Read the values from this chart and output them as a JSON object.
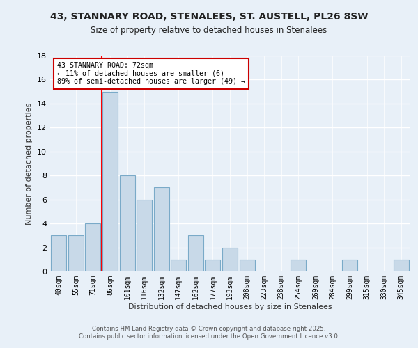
{
  "title1": "43, STANNARY ROAD, STENALEES, ST. AUSTELL, PL26 8SW",
  "title2": "Size of property relative to detached houses in Stenalees",
  "xlabel": "Distribution of detached houses by size in Stenalees",
  "ylabel": "Number of detached properties",
  "categories": [
    "40sqm",
    "55sqm",
    "71sqm",
    "86sqm",
    "101sqm",
    "116sqm",
    "132sqm",
    "147sqm",
    "162sqm",
    "177sqm",
    "193sqm",
    "208sqm",
    "223sqm",
    "238sqm",
    "254sqm",
    "269sqm",
    "284sqm",
    "299sqm",
    "315sqm",
    "330sqm",
    "345sqm"
  ],
  "values": [
    3,
    3,
    4,
    15,
    8,
    6,
    7,
    1,
    3,
    1,
    2,
    1,
    0,
    0,
    1,
    0,
    0,
    1,
    0,
    0,
    1
  ],
  "bar_color": "#c8d9e8",
  "bar_edge_color": "#7aaac8",
  "bg_color": "#e8f0f8",
  "red_line_x": 2.5,
  "annotation_text": "43 STANNARY ROAD: 72sqm\n← 11% of detached houses are smaller (6)\n89% of semi-detached houses are larger (49) →",
  "annotation_box_color": "#ffffff",
  "annotation_border_color": "#cc0000",
  "footer1": "Contains HM Land Registry data © Crown copyright and database right 2025.",
  "footer2": "Contains public sector information licensed under the Open Government Licence v3.0.",
  "ylim": [
    0,
    18
  ],
  "yticks": [
    0,
    2,
    4,
    6,
    8,
    10,
    12,
    14,
    16,
    18
  ]
}
